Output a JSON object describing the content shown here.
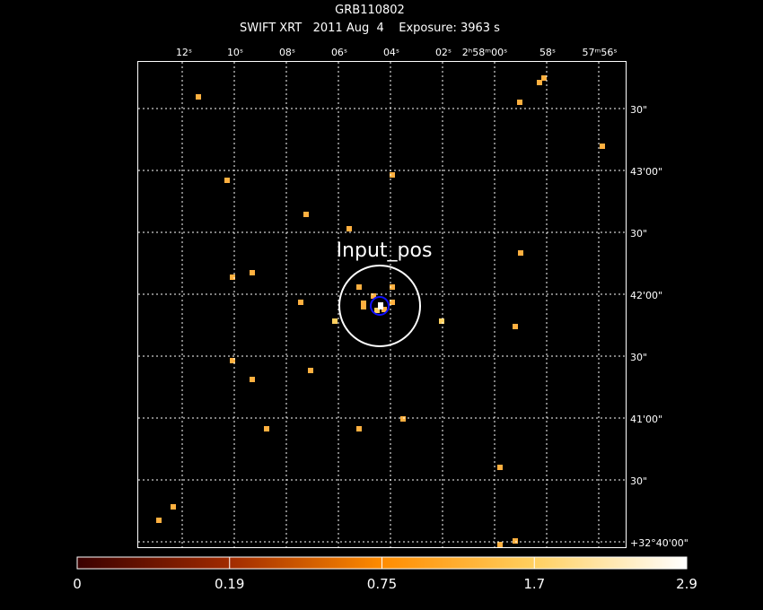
{
  "header": {
    "title": "GRB110802",
    "subtitle": "SWIFT XRT   2011 Aug  4    Exposure: 3963 s"
  },
  "top_ticks": [
    "12ˢ",
    "10ˢ",
    "08ˢ",
    "06ˢ",
    "04ˢ",
    "02ˢ",
    "2ʰ58ᵐ00ˢ",
    "58ˢ",
    "57ᵐ56ˢ"
  ],
  "right_ticks": [
    "30\"",
    "43'00\"",
    "30\"",
    "42'00\"",
    "30\"",
    "41'00\"",
    "30\"",
    "+32°40'00\""
  ],
  "annotation": "Input_pos",
  "colorbar": {
    "labels": [
      "0",
      "0.19",
      "0.75",
      "1.7",
      "2.9"
    ]
  }
}
